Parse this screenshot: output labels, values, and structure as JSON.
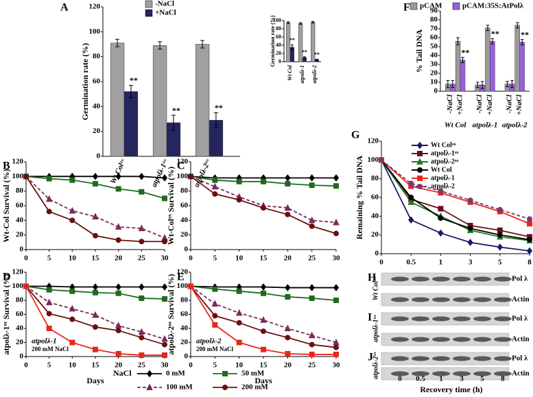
{
  "chart_data": [
    {
      "type": "bar",
      "panel": "A",
      "ylabel": "Germination rate (%)",
      "categories": [
        "Wt Colᵒˣ",
        "atpolλ-1ᵒˣ",
        "atpolλ-2ᵒˣ"
      ],
      "series": [
        {
          "name": "-NaCl",
          "color": "#a0a0a0",
          "values": [
            91,
            89,
            90
          ],
          "errors": [
            3,
            3,
            3
          ]
        },
        {
          "name": "+NaCl",
          "color": "#26265e",
          "values": [
            52,
            27,
            29
          ],
          "errors": [
            5,
            6,
            6
          ],
          "labels": [
            "**",
            "**",
            "**"
          ]
        }
      ],
      "ylim": [
        0,
        120
      ],
      "yticks": [
        0,
        20,
        40,
        60,
        80,
        100,
        120
      ]
    },
    {
      "type": "bar",
      "ylabel": "Germination rate (%)",
      "categories": [
        "Wt Col",
        "atpolλ-1",
        "atpolλ-2"
      ],
      "series": [
        {
          "color": "#a0a0a0",
          "values": [
            95,
            93,
            96
          ],
          "errors": [
            2,
            2,
            2
          ]
        },
        {
          "color": "#26265e",
          "values": [
            35,
            10,
            5
          ],
          "errors": [
            6,
            2,
            1
          ],
          "labels": [
            "**",
            "**",
            "**"
          ]
        }
      ],
      "ylim": [
        0,
        100
      ],
      "yticks": [
        0,
        20,
        40,
        60,
        80,
        100
      ]
    },
    {
      "type": "bar",
      "panel": "F",
      "ylabel": "% Tail DNA",
      "categories": [
        "-NaCl",
        "+NaCl",
        "-NaCl",
        "+NaCl",
        "-NaCl",
        "+NaCl"
      ],
      "groups": [
        "Wt Col",
        "atpolλ-1",
        "atpolλ-2"
      ],
      "series": [
        {
          "name": "pCAM",
          "color": "#9a9a9a",
          "values": [
            8,
            56,
            7,
            71,
            8,
            74
          ],
          "errors": [
            4,
            4,
            3,
            3,
            3,
            3
          ]
        },
        {
          "name": "pCAM:35S:AtPolλ",
          "color": "#9b5fe0",
          "values": [
            8,
            35,
            7,
            56,
            8,
            55
          ],
          "errors": [
            4,
            3,
            4,
            3,
            4,
            3
          ],
          "labels": [
            null,
            "**",
            null,
            "**",
            null,
            "**"
          ]
        }
      ],
      "ylim": [
        0,
        90
      ],
      "yticks": [
        0,
        10,
        20,
        30,
        40,
        50,
        60,
        70,
        80,
        90
      ]
    },
    {
      "type": "line",
      "panel": "B",
      "ylabel": "Wt-Col Survival (%)",
      "legend_title": "NaCl",
      "x": [
        0,
        5,
        10,
        15,
        20,
        25,
        30
      ],
      "xlim": [
        0,
        30
      ],
      "xticks": [
        0,
        5,
        10,
        15,
        20,
        25,
        30
      ],
      "ylim": [
        0,
        120
      ],
      "yticks": [
        0,
        20,
        40,
        60,
        80,
        100,
        120
      ],
      "series": [
        {
          "name": "0 mM",
          "color": "#000000",
          "marker": "diamond",
          "values": [
            100,
            100,
            100,
            100,
            100,
            100,
            98
          ]
        },
        {
          "name": "50 mM",
          "color": "#1e6b1e",
          "marker": "square",
          "values": [
            100,
            97,
            95,
            90,
            83,
            79,
            70
          ]
        },
        {
          "name": "100 mM",
          "color": "#7a2a5a",
          "marker": "triangle",
          "dashed": true,
          "values": [
            100,
            69,
            53,
            45,
            31,
            29,
            16
          ]
        },
        {
          "name": "200 mM",
          "color": "#6b0f0f",
          "marker": "circle",
          "values": [
            100,
            52,
            40,
            19,
            13,
            11,
            11
          ]
        }
      ]
    },
    {
      "type": "line",
      "panel": "C",
      "ylabel": "Wt-Colᵒˣ Survival (%)",
      "x": [
        0,
        5,
        10,
        15,
        20,
        25,
        30
      ],
      "xlim": [
        0,
        30
      ],
      "xticks": [
        0,
        5,
        10,
        15,
        20,
        25,
        30
      ],
      "ylim": [
        0,
        120
      ],
      "yticks": [
        0,
        20,
        40,
        60,
        80,
        100,
        120
      ],
      "series": [
        {
          "color": "#000000",
          "marker": "diamond",
          "values": [
            100,
            98,
            98,
            98,
            98,
            98,
            98
          ]
        },
        {
          "color": "#1e6b1e",
          "marker": "square",
          "values": [
            100,
            95,
            93,
            93,
            90,
            88,
            87
          ]
        },
        {
          "color": "#7a2a5a",
          "marker": "triangle",
          "dashed": true,
          "values": [
            100,
            86,
            72,
            60,
            57,
            40,
            37
          ]
        },
        {
          "color": "#6b0f0f",
          "marker": "circle",
          "values": [
            100,
            76,
            68,
            57,
            48,
            32,
            22
          ]
        }
      ]
    },
    {
      "type": "line",
      "panel": "D",
      "ylabel": "atpolλ-1ᵒˣ Survival (%)",
      "xlabel": "Days",
      "annotations": [
        "atpolλ-1",
        "200 mM NaCl"
      ],
      "x": [
        0,
        5,
        10,
        15,
        20,
        25,
        30
      ],
      "xlim": [
        0,
        30
      ],
      "xticks": [
        0,
        5,
        10,
        15,
        20,
        25,
        30
      ],
      "ylim": [
        0,
        120
      ],
      "yticks": [
        0,
        20,
        40,
        60,
        80,
        100,
        120
      ],
      "series": [
        {
          "color": "#000000",
          "marker": "diamond",
          "values": [
            100,
            100,
            99,
            99,
            99,
            99,
            99
          ]
        },
        {
          "color": "#1e6b1e",
          "marker": "square",
          "values": [
            100,
            95,
            93,
            91,
            90,
            83,
            82
          ]
        },
        {
          "color": "#7a2a5a",
          "marker": "triangle",
          "dashed": true,
          "values": [
            100,
            77,
            68,
            59,
            44,
            35,
            25
          ]
        },
        {
          "color": "#6b0f0f",
          "marker": "circle",
          "values": [
            100,
            61,
            53,
            42,
            37,
            27,
            17
          ]
        },
        {
          "color": "#e8261c",
          "marker": "square",
          "values": [
            100,
            40,
            20,
            10,
            4,
            2,
            2
          ]
        }
      ]
    },
    {
      "type": "line",
      "panel": "E",
      "ylabel": "atpolλ-2ᵒˣ Survival (%)",
      "xlabel": "Days",
      "annotations": [
        "atpolλ-2",
        "200 mM NaCl"
      ],
      "x": [
        0,
        5,
        10,
        15,
        20,
        25,
        30
      ],
      "xlim": [
        0,
        30
      ],
      "xticks": [
        0,
        5,
        10,
        15,
        20,
        25,
        30
      ],
      "ylim": [
        0,
        120
      ],
      "yticks": [
        0,
        20,
        40,
        60,
        80,
        100,
        120
      ],
      "series": [
        {
          "color": "#000000",
          "marker": "diamond",
          "values": [
            100,
            99,
            99,
            99,
            98,
            98,
            98
          ]
        },
        {
          "color": "#1e6b1e",
          "marker": "square",
          "values": [
            100,
            96,
            93,
            90,
            85,
            83,
            80
          ]
        },
        {
          "color": "#7a2a5a",
          "marker": "triangle",
          "dashed": true,
          "values": [
            100,
            75,
            62,
            52,
            40,
            30,
            20
          ]
        },
        {
          "color": "#6b0f0f",
          "marker": "circle",
          "values": [
            100,
            58,
            48,
            36,
            27,
            17,
            13
          ]
        },
        {
          "color": "#e8261c",
          "marker": "square",
          "values": [
            100,
            45,
            20,
            10,
            4,
            3,
            3
          ]
        }
      ]
    },
    {
      "type": "line",
      "panel": "G",
      "ylabel": "Remaining % Tail DNA",
      "xlabel": "Recovery time (h)",
      "categories": [
        "0",
        "0.5",
        "1",
        "3",
        "5",
        "8"
      ],
      "ylim": [
        0,
        120
      ],
      "yticks": [
        0,
        20,
        40,
        60,
        80,
        100,
        120
      ],
      "series": [
        {
          "name": "Wt Colᵒˣ",
          "color": "#1a1a6b",
          "marker": "diamond",
          "values": [
            100,
            36,
            22,
            12,
            7,
            3
          ]
        },
        {
          "name": "atpolλ-1ᵒˣ",
          "color": "#6b0f1a",
          "marker": "square",
          "values": [
            100,
            58,
            48,
            30,
            25,
            18
          ]
        },
        {
          "name": "atpolλ-2ᵒˣ",
          "color": "#1e7b1e",
          "marker": "triangle",
          "values": [
            100,
            55,
            40,
            25,
            18,
            14
          ]
        },
        {
          "name": "Wt Col",
          "color": "#000000",
          "marker": "circle",
          "values": [
            100,
            60,
            38,
            27,
            20,
            15
          ]
        },
        {
          "name": "atpolλ-1",
          "color": "#e8261c",
          "marker": "square",
          "values": [
            100,
            72,
            65,
            55,
            45,
            32
          ]
        },
        {
          "name": "atpolλ-2",
          "color": "#7a3a6a",
          "marker": "circle",
          "dashed": true,
          "values": [
            100,
            75,
            67,
            57,
            47,
            37
          ]
        }
      ]
    }
  ],
  "blots": {
    "panels": [
      {
        "panel": "H",
        "sample": "Wt Colᵒˣ",
        "bands": [
          "Pol λ",
          "Actin"
        ]
      },
      {
        "panel": "I",
        "sample": "atpolλ-1ᵒˣ",
        "bands": [
          "Pol λ",
          "Actin"
        ]
      },
      {
        "panel": "J",
        "sample": "atpolλ-2ᵒˣ",
        "bands": [
          "Pol λ",
          "Actin"
        ]
      }
    ],
    "lanes": [
      "0",
      "0.5",
      "1",
      "3",
      "5",
      "8"
    ],
    "xlabel": "Recovery time (h)"
  }
}
